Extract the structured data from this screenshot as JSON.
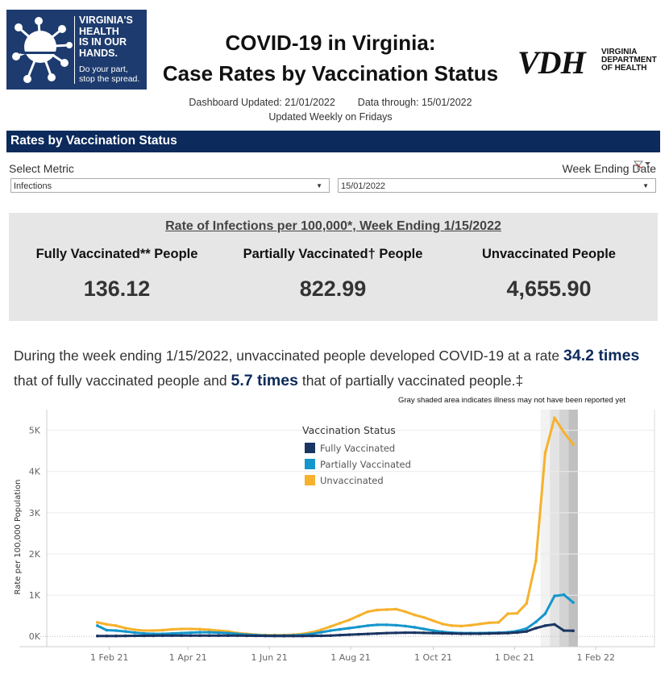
{
  "header": {
    "logo_left": {
      "big_text": [
        "VIRGINIA'S",
        "HEALTH",
        "IS IN OUR",
        "HANDS."
      ],
      "small_text": [
        "Do your part,",
        "stop the spread."
      ],
      "bg_color": "#1d3b6e"
    },
    "title_line1": "COVID-19 in Virginia:",
    "title_line2": "Case Rates by Vaccination Status",
    "logo_right": {
      "letters": "VDH",
      "sub": [
        "VIRGINIA",
        "DEPARTMENT",
        "OF HEALTH"
      ]
    },
    "dashboard_updated": "Dashboard Updated: 21/01/2022",
    "data_through": "Data through: 15/01/2022",
    "update_frequency": "Updated Weekly on Fridays"
  },
  "section": {
    "title": "Rates by Vaccination Status",
    "bg_color": "#0c2a5b"
  },
  "filters": {
    "metric_label": "Select Metric",
    "metric_value": "Infections",
    "date_label": "Week Ending Date",
    "date_value": "15/01/2022"
  },
  "kpi": {
    "heading": "Rate of Infections per 100,000*, Week Ending 1/15/2022",
    "columns": [
      {
        "label": "Fully Vaccinated** People",
        "value": "136.12"
      },
      {
        "label": "Partially Vaccinated† People",
        "value": "822.99"
      },
      {
        "label": "Unvaccinated People",
        "value": "4,655.90"
      }
    ]
  },
  "summary": {
    "part1": "During the week ending 1/15/2022, unvaccinated people developed COVID-19 at a rate ",
    "ratio_full": "34.2 times",
    "part2": " that of fully vaccinated people and ",
    "ratio_partial": "5.7 times",
    "part3": " that of partially vaccinated people.‡"
  },
  "chart_note": "Gray shaded area indicates illness may not have been reported yet",
  "chart_data": {
    "type": "line",
    "title": "",
    "xlabel": "",
    "ylabel": "Rate per 100,000 Population",
    "ylim": [
      -250,
      5500
    ],
    "y_ticks": [
      0,
      1000,
      2000,
      3000,
      4000,
      5000
    ],
    "y_tick_labels": [
      "0K",
      "1K",
      "2K",
      "3K",
      "4K",
      "5K"
    ],
    "x_range_days": [
      -47,
      409
    ],
    "x_ticks_days": [
      0,
      59,
      120,
      181,
      243,
      304,
      365
    ],
    "x_tick_labels": [
      "1 Feb 21",
      "1 Apr 21",
      "1 Jun 21",
      "1 Aug 21",
      "1 Oct 21",
      "1 Dec 21",
      "1 Feb 22"
    ],
    "x_start_day": -9,
    "x_step_days": 7,
    "grid": true,
    "legend": {
      "title": "Vaccination Status",
      "position": "top-center"
    },
    "shaded_weeks": 4,
    "shade_colors": [
      "#f2f2f2",
      "#e3e3e3",
      "#d3d3d3",
      "#c0c0c0"
    ],
    "series": [
      {
        "name": "Fully Vaccinated",
        "color": "#1a3562",
        "values": [
          10,
          10,
          10,
          12,
          14,
          15,
          16,
          18,
          18,
          19,
          19,
          20,
          20,
          20,
          20,
          18,
          16,
          14,
          12,
          10,
          10,
          10,
          10,
          12,
          15,
          20,
          30,
          40,
          50,
          60,
          70,
          80,
          85,
          90,
          90,
          85,
          80,
          75,
          70,
          65,
          65,
          65,
          70,
          75,
          80,
          95,
          120,
          200,
          260,
          290,
          140,
          136
        ]
      },
      {
        "name": "Partially Vaccinated",
        "color": "#1596cc",
        "values": [
          260,
          150,
          140,
          120,
          90,
          70,
          60,
          60,
          70,
          80,
          90,
          100,
          100,
          90,
          80,
          60,
          40,
          30,
          20,
          20,
          20,
          25,
          35,
          60,
          100,
          140,
          170,
          200,
          230,
          260,
          280,
          280,
          270,
          250,
          220,
          180,
          140,
          110,
          90,
          80,
          80,
          80,
          85,
          90,
          100,
          130,
          190,
          350,
          550,
          980,
          1010,
          823
        ]
      },
      {
        "name": "Unvaccinated",
        "color": "#f6b12d",
        "values": [
          340,
          290,
          260,
          200,
          160,
          140,
          140,
          150,
          170,
          180,
          180,
          175,
          160,
          140,
          120,
          80,
          60,
          40,
          30,
          30,
          30,
          40,
          60,
          100,
          160,
          240,
          320,
          400,
          500,
          600,
          640,
          650,
          660,
          600,
          520,
          460,
          380,
          300,
          260,
          250,
          270,
          300,
          330,
          340,
          550,
          560,
          800,
          1830,
          4450,
          5300,
          4950,
          4656
        ]
      }
    ]
  }
}
